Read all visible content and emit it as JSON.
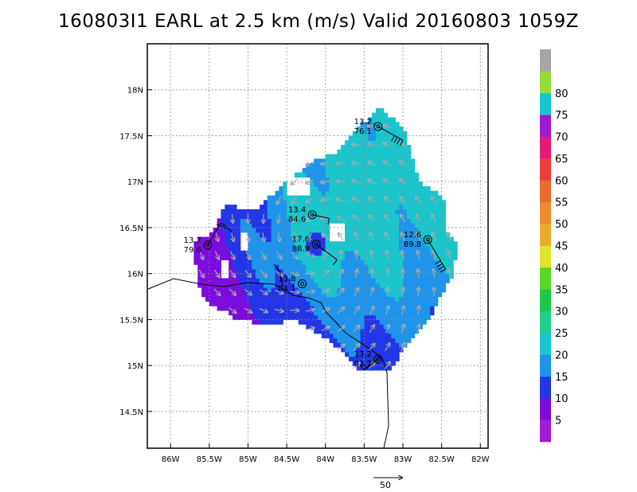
{
  "title": "160803I1 EARL at 2.5 km (m/s) Valid 20160803 1059Z",
  "map": {
    "lon_range": [
      -86.3,
      -81.9
    ],
    "lat_range": [
      14.1,
      18.5
    ],
    "lon_ticks": [
      {
        "value": -86,
        "label": "86W"
      },
      {
        "value": -85.5,
        "label": "85.5W"
      },
      {
        "value": -85,
        "label": "85W"
      },
      {
        "value": -84.5,
        "label": "84.5W"
      },
      {
        "value": -84,
        "label": "84W"
      },
      {
        "value": -83.5,
        "label": "83.5W"
      },
      {
        "value": -83,
        "label": "83W"
      },
      {
        "value": -82.5,
        "label": "82.5W"
      },
      {
        "value": -82,
        "label": "82W"
      }
    ],
    "lat_ticks": [
      {
        "value": 18,
        "label": "18N"
      },
      {
        "value": 17.5,
        "label": "17.5N"
      },
      {
        "value": 17,
        "label": "17N"
      },
      {
        "value": 16.5,
        "label": "16.5N"
      },
      {
        "value": 16,
        "label": "16N"
      },
      {
        "value": 15.5,
        "label": "15.5N"
      },
      {
        "value": 15,
        "label": "15N"
      },
      {
        "value": 14.5,
        "label": "14.5N"
      }
    ],
    "grid": true,
    "storm_center": {
      "lon": -84.12,
      "lat": 16.32
    }
  },
  "colorbar": {
    "levels": [
      0,
      5,
      10,
      15,
      20,
      25,
      30,
      35,
      40,
      45,
      50,
      55,
      60,
      65,
      70,
      75,
      80,
      85
    ],
    "labels": [
      "5",
      "10",
      "15",
      "20",
      "25",
      "30",
      "35",
      "40",
      "45",
      "50",
      "55",
      "60",
      "65",
      "70",
      "75",
      "80"
    ],
    "colors": [
      "#a01cd6",
      "#7d0ddc",
      "#2337e6",
      "#1f94ea",
      "#1cc4cc",
      "#22cf8c",
      "#1ec64a",
      "#5ad626",
      "#dfe42c",
      "#e9ad2e",
      "#ed8a2c",
      "#ec6a2f",
      "#eb3e3c",
      "#e51b78",
      "#9d1ad2",
      "#1ac5c7",
      "#98dc38",
      "#a6a6a6"
    ]
  },
  "dropsondes": [
    {
      "lon": -83.32,
      "lat": 17.6,
      "top": "13.2",
      "bottom": "76.1"
    },
    {
      "lon": -84.17,
      "lat": 16.64,
      "top": "13.4",
      "bottom": "84.6"
    },
    {
      "lon": -82.68,
      "lat": 16.37,
      "top": "12.6",
      "bottom": "89.8"
    },
    {
      "lon": -85.52,
      "lat": 16.31,
      "top": "13.7",
      "bottom": "79.6"
    },
    {
      "lon": -84.12,
      "lat": 16.32,
      "top": "17.6",
      "bottom": "88.9"
    },
    {
      "lon": -84.3,
      "lat": 15.89,
      "top": "13.8",
      "bottom": "84.1"
    },
    {
      "lon": -83.32,
      "lat": 15.07,
      "top": "13.2",
      "bottom": "81.2"
    }
  ],
  "vector_key": {
    "label": "50"
  }
}
